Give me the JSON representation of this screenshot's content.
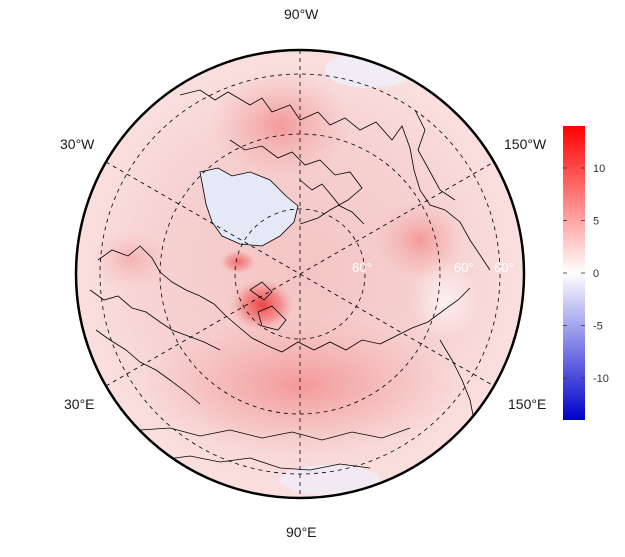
{
  "map": {
    "projection": "polar-stereographic-north",
    "longitude_labels": {
      "top": "90°W",
      "upper_left": "30°W",
      "upper_right": "150°W",
      "lower_left": "30°E",
      "lower_right": "150°E",
      "bottom": "90°E"
    },
    "latitude_labels": [
      "60°",
      "60°",
      "60°"
    ],
    "graticule": "dashed",
    "colorbar": {
      "ticks": [
        "10",
        "5",
        "0",
        "-5",
        "-10"
      ],
      "tick_values": [
        10,
        5,
        0,
        -5,
        -10
      ],
      "range": [
        -14,
        14
      ],
      "colors": {
        "max": "#ff0000",
        "mid": "#ffffff",
        "min": "#0000cc"
      }
    },
    "colors": {
      "warm_base": "#f6cfcf",
      "hot_spot": "#ea2b2b",
      "cold_spot": "#dde3f6",
      "coastline": "#000000"
    }
  }
}
